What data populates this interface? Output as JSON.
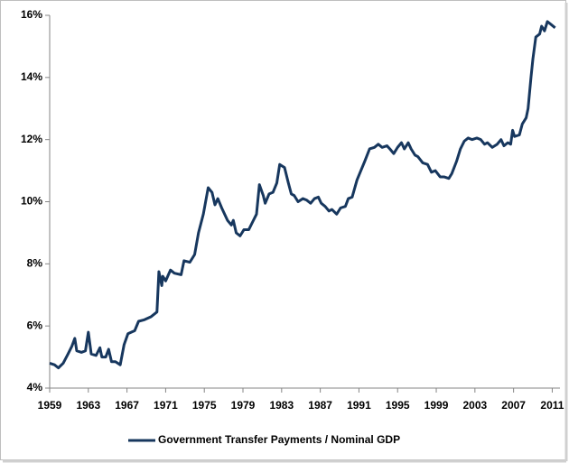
{
  "chart_data": {
    "type": "line",
    "x": [
      1959.0,
      1959.5,
      1959.9,
      1960.4,
      1960.9,
      1961.3,
      1961.6,
      1961.8,
      1962.3,
      1962.7,
      1963.0,
      1963.3,
      1963.8,
      1964.2,
      1964.4,
      1964.8,
      1965.1,
      1965.4,
      1965.8,
      1966.3,
      1966.7,
      1967.1,
      1967.8,
      1968.2,
      1968.8,
      1969.5,
      1970.1,
      1970.3,
      1970.6,
      1970.7,
      1971.0,
      1971.5,
      1971.9,
      1972.6,
      1972.9,
      1973.5,
      1974.0,
      1974.4,
      1974.9,
      1975.4,
      1975.8,
      1976.1,
      1976.4,
      1976.8,
      1977.4,
      1977.8,
      1978.0,
      1978.3,
      1978.7,
      1979.1,
      1979.6,
      1980.0,
      1980.4,
      1980.7,
      1981.1,
      1981.3,
      1981.7,
      1982.1,
      1982.5,
      1982.8,
      1983.3,
      1983.7,
      1984.0,
      1984.3,
      1984.7,
      1985.2,
      1985.6,
      1986.0,
      1986.4,
      1986.8,
      1987.1,
      1987.5,
      1987.9,
      1988.2,
      1988.7,
      1989.1,
      1989.6,
      1989.9,
      1990.3,
      1990.8,
      1991.2,
      1991.6,
      1992.1,
      1992.6,
      1993.0,
      1993.4,
      1993.9,
      1994.2,
      1994.6,
      1995.0,
      1995.4,
      1995.7,
      1996.1,
      1996.4,
      1996.8,
      1997.1,
      1997.6,
      1998.1,
      1998.5,
      1998.9,
      1999.4,
      1999.8,
      2000.3,
      2000.6,
      2001.1,
      2001.5,
      2001.9,
      2002.3,
      2002.7,
      2003.2,
      2003.6,
      2004.0,
      2004.3,
      2004.8,
      2005.3,
      2005.7,
      2006.0,
      2006.4,
      2006.7,
      2006.9,
      2007.1,
      2007.6,
      2007.9,
      2008.3,
      2008.5,
      2008.8,
      2009.0,
      2009.3,
      2009.7,
      2009.9,
      2010.2,
      2010.5,
      2010.9,
      2011.3
    ],
    "series": [
      {
        "name": "Government Transfer Payments / Nominal GDP",
        "color": "#17375e",
        "values": [
          4.8,
          4.75,
          4.65,
          4.8,
          5.1,
          5.35,
          5.6,
          5.2,
          5.15,
          5.2,
          5.8,
          5.1,
          5.05,
          5.3,
          5.0,
          5.0,
          5.25,
          4.85,
          4.85,
          4.75,
          5.4,
          5.75,
          5.85,
          6.15,
          6.2,
          6.3,
          6.45,
          7.75,
          7.3,
          7.6,
          7.45,
          7.8,
          7.7,
          7.65,
          8.1,
          8.05,
          8.3,
          9.0,
          9.6,
          10.45,
          10.3,
          9.9,
          10.1,
          9.8,
          9.4,
          9.25,
          9.4,
          9.0,
          8.9,
          9.1,
          9.1,
          9.35,
          9.6,
          10.55,
          10.2,
          9.95,
          10.25,
          10.3,
          10.6,
          11.2,
          11.1,
          10.6,
          10.25,
          10.2,
          10.0,
          10.1,
          10.05,
          9.95,
          10.1,
          10.15,
          9.95,
          9.85,
          9.7,
          9.75,
          9.6,
          9.8,
          9.85,
          10.1,
          10.15,
          10.7,
          11.0,
          11.3,
          11.7,
          11.75,
          11.85,
          11.75,
          11.8,
          11.7,
          11.55,
          11.75,
          11.9,
          11.7,
          11.9,
          11.7,
          11.5,
          11.45,
          11.25,
          11.2,
          10.95,
          11.0,
          10.8,
          10.8,
          10.75,
          10.9,
          11.3,
          11.7,
          11.95,
          12.05,
          12.0,
          12.05,
          12.0,
          11.85,
          11.9,
          11.75,
          11.85,
          12.0,
          11.8,
          11.9,
          11.85,
          12.3,
          12.1,
          12.15,
          12.5,
          12.7,
          13.0,
          14.0,
          14.6,
          15.3,
          15.4,
          15.65,
          15.5,
          15.8,
          15.7,
          15.6
        ]
      }
    ],
    "xlim": [
      1959,
      2011.8
    ],
    "xticks": [
      1959,
      1963,
      1967,
      1971,
      1975,
      1979,
      1983,
      1987,
      1991,
      1995,
      1999,
      2003,
      2007,
      2011
    ],
    "ylim": [
      4,
      16
    ],
    "yticks": [
      {
        "value": 4,
        "label": "4%"
      },
      {
        "value": 6,
        "label": "6%"
      },
      {
        "value": 8,
        "label": "8%"
      },
      {
        "value": 10,
        "label": "10%"
      },
      {
        "value": 12,
        "label": "12%"
      },
      {
        "value": 14,
        "label": "14%"
      },
      {
        "value": 16,
        "label": "16%"
      }
    ],
    "grid": false,
    "legend": "bottom"
  }
}
